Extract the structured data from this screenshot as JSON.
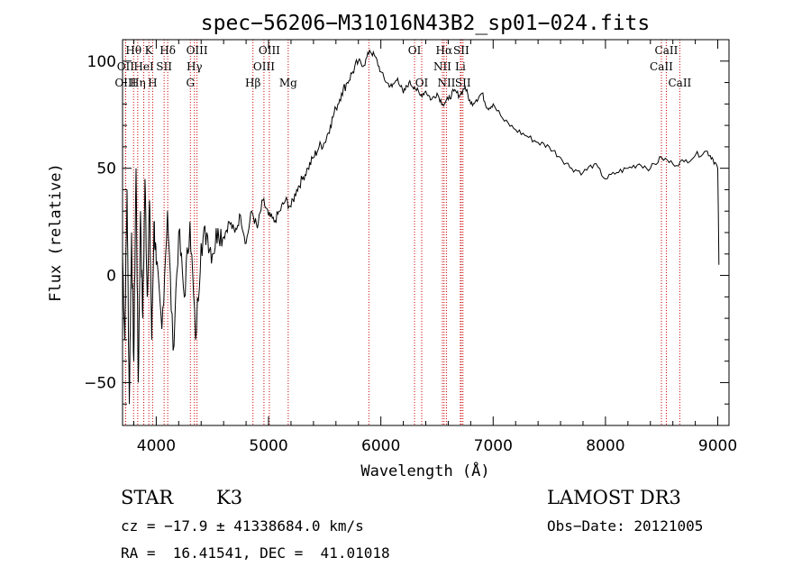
{
  "chart_data": {
    "type": "line",
    "title": "spec−56206−M31016N43B2_sp01−024.fits",
    "xlabel": "Wavelength (Å)",
    "ylabel": "Flux (relative)",
    "xlim": [
      3700,
      9100
    ],
    "ylim": [
      -70,
      110
    ],
    "xticks": [
      4000,
      5000,
      6000,
      7000,
      8000,
      9000
    ],
    "yticks": [
      -50,
      0,
      50,
      100
    ],
    "ytick_labels": [
      "−50",
      "0",
      "50",
      "100"
    ],
    "series": [
      {
        "name": "spectrum",
        "x": [
          3700,
          3720,
          3740,
          3760,
          3780,
          3800,
          3820,
          3840,
          3860,
          3880,
          3900,
          3920,
          3940,
          3960,
          3980,
          4000,
          4050,
          4100,
          4150,
          4200,
          4250,
          4300,
          4350,
          4400,
          4450,
          4500,
          4550,
          4600,
          4650,
          4700,
          4750,
          4800,
          4850,
          4900,
          4950,
          5000,
          5050,
          5100,
          5150,
          5200,
          5250,
          5300,
          5350,
          5400,
          5450,
          5500,
          5550,
          5600,
          5650,
          5700,
          5750,
          5800,
          5850,
          5900,
          5950,
          6000,
          6050,
          6100,
          6150,
          6200,
          6250,
          6300,
          6350,
          6400,
          6450,
          6500,
          6550,
          6600,
          6650,
          6700,
          6750,
          6800,
          6850,
          6900,
          6950,
          7000,
          7100,
          7200,
          7300,
          7400,
          7500,
          7600,
          7700,
          7800,
          7900,
          8000,
          8100,
          8200,
          8300,
          8400,
          8500,
          8600,
          8700,
          8800,
          8900,
          8950,
          9000,
          9010
        ],
        "y": [
          10,
          -30,
          40,
          -60,
          20,
          -40,
          50,
          -50,
          30,
          -20,
          45,
          -10,
          35,
          -30,
          25,
          5,
          -25,
          30,
          -35,
          20,
          -10,
          25,
          -30,
          15,
          20,
          10,
          22,
          18,
          25,
          20,
          28,
          15,
          30,
          22,
          35,
          28,
          25,
          30,
          35,
          32,
          40,
          45,
          50,
          55,
          60,
          62,
          70,
          78,
          85,
          90,
          95,
          100,
          98,
          105,
          102,
          95,
          90,
          88,
          92,
          85,
          90,
          88,
          84,
          86,
          82,
          85,
          80,
          82,
          86,
          84,
          88,
          80,
          82,
          85,
          78,
          80,
          72,
          68,
          65,
          62,
          60,
          55,
          50,
          48,
          52,
          45,
          48,
          50,
          52,
          50,
          55,
          52,
          53,
          56,
          58,
          55,
          50,
          5
        ]
      }
    ],
    "emission_lines": [
      {
        "label": "Hθ",
        "x": 3798,
        "row": 0
      },
      {
        "label": "OII",
        "x": 3727,
        "row": 1
      },
      {
        "label": "OIII",
        "x": 3727,
        "row": 2
      },
      {
        "label": "K",
        "x": 3934,
        "row": 0
      },
      {
        "label": "HeI",
        "x": 3889,
        "row": 1
      },
      {
        "label": "Hη",
        "x": 3835,
        "row": 2
      },
      {
        "label": "SII",
        "x": 4070,
        "row": 1
      },
      {
        "label": "H",
        "x": 3968,
        "row": 2
      },
      {
        "label": "Hδ",
        "x": 4102,
        "row": 0
      },
      {
        "label": "OIII",
        "x": 4363,
        "row": 0
      },
      {
        "label": "Hγ",
        "x": 4340,
        "row": 1
      },
      {
        "label": "G",
        "x": 4304,
        "row": 2
      },
      {
        "label": "OIII",
        "x": 5007,
        "row": 0
      },
      {
        "label": "OIII",
        "x": 4959,
        "row": 1
      },
      {
        "label": "Hβ",
        "x": 4861,
        "row": 2
      },
      {
        "label": "Mg",
        "x": 5175,
        "row": 2
      },
      {
        "label": "OI",
        "x": 6300,
        "row": 0
      },
      {
        "label": "OI",
        "x": 6364,
        "row": 2
      },
      {
        "label": "Hα",
        "x": 6563,
        "row": 0
      },
      {
        "label": "SII",
        "x": 6716,
        "row": 0
      },
      {
        "label": "NII",
        "x": 6548,
        "row": 1
      },
      {
        "label": "Li",
        "x": 6708,
        "row": 1
      },
      {
        "label": "NII",
        "x": 6584,
        "row": 2
      },
      {
        "label": "SII",
        "x": 6731,
        "row": 2
      },
      {
        "label": "CaII",
        "x": 8542,
        "row": 0
      },
      {
        "label": "CaII",
        "x": 8498,
        "row": 1
      },
      {
        "label": "CaII",
        "x": 8662,
        "row": 2
      },
      {
        "label": "",
        "x": 5893,
        "row": -1
      }
    ]
  },
  "info": {
    "object_class": "STAR",
    "subclass": "K3",
    "survey": "LAMOST DR3",
    "redshift_line": "cz = −17.9 ± 41338684.0 km/s",
    "obs_date": "Obs−Date: 20121005",
    "coords": "RA =  16.41541, DEC =  41.01018"
  },
  "colors": {
    "line_marker": "#cc0000",
    "spectrum": "#000000"
  }
}
